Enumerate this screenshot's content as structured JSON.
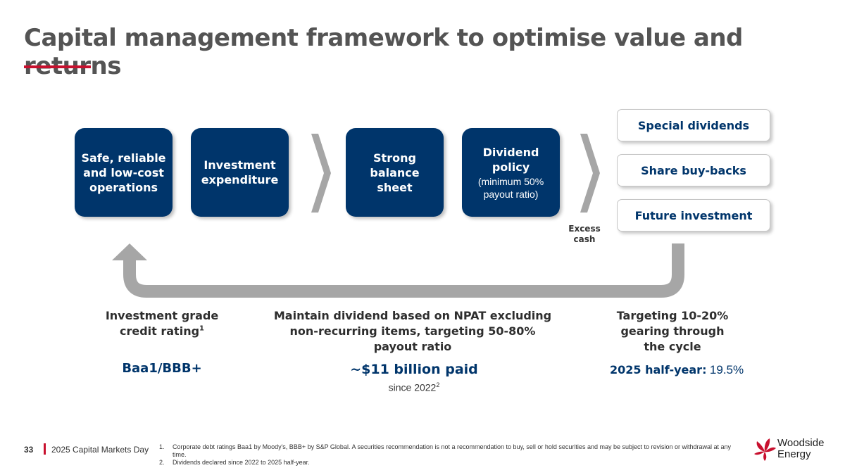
{
  "slide": {
    "title": "Capital management framework to optimise value and returns",
    "accent_color": "#c8102e",
    "brand_navy": "#00356b"
  },
  "flow": {
    "boxes": [
      {
        "label": "Safe, reliable\nand low-cost\noperations",
        "sub": ""
      },
      {
        "label": "Investment\nexpenditure",
        "sub": ""
      },
      {
        "label": "Strong\nbalance\nsheet",
        "sub": ""
      },
      {
        "label": "Dividend\npolicy",
        "sub": "(minimum 50%\npayout ratio)"
      }
    ],
    "excess_label": "Excess\ncash",
    "options": [
      "Special dividends",
      "Share buy-backs",
      "Future investment"
    ],
    "arrow_icons": [
      "chevron-right-icon",
      "chevron-right-icon",
      "loop-back-arrow-icon"
    ]
  },
  "metrics": {
    "credit": {
      "title": "Investment grade\ncredit rating",
      "footnote_ref": "1",
      "value": "Baa1/BBB+"
    },
    "dividend": {
      "title": "Maintain dividend based on NPAT excluding\nnon-recurring items, targeting 50-80%\npayout ratio",
      "value": "~$11 billion paid",
      "since_text": "since 2022",
      "footnote_ref": "2"
    },
    "gearing": {
      "title": "Targeting 10-20%\ngearing through\nthe cycle",
      "half_year_label": "2025 half-year:",
      "half_year_value": "19.5%"
    }
  },
  "footer": {
    "page_number": "33",
    "event": "2025 Capital Markets Day",
    "footnotes": [
      {
        "num": "1.",
        "text": "Corporate debt ratings Baa1 by Moody's, BBB+ by S&P Global. A securities recommendation is not a recommendation to buy, sell or hold securities and may be subject to revision or withdrawal at any time."
      },
      {
        "num": "2.",
        "text": "Dividends declared since 2022 to 2025 half-year."
      }
    ],
    "logo_text": "Woodside\nEnergy",
    "logo_icon": "woodside-flower-icon"
  }
}
